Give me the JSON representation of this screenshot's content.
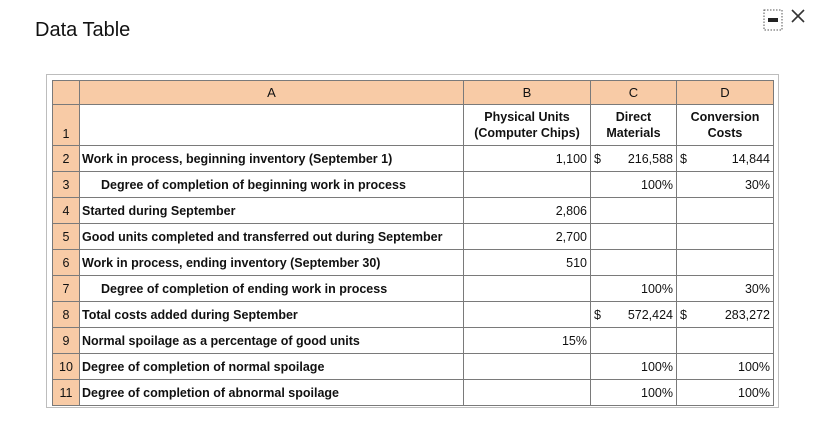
{
  "title": "Data Table",
  "table": {
    "column_letters": [
      "A",
      "B",
      "C",
      "D"
    ],
    "header_row": {
      "number": "1",
      "columns": [
        [
          "Physical Units",
          "(Computer Chips)"
        ],
        [
          "Direct",
          "Materials"
        ],
        [
          "Conversion",
          "Costs"
        ]
      ]
    },
    "rows": [
      {
        "number": "2",
        "label": "Work in process, beginning inventory (September 1)",
        "b": "1,100",
        "c_symbol": "$",
        "c": "216,588",
        "d_symbol": "$",
        "d": "14,844"
      },
      {
        "number": "3",
        "label": "Degree of completion of beginning work in process",
        "indented": true,
        "c": "100%",
        "d": "30%"
      },
      {
        "number": "4",
        "label": "Started during September",
        "b": "2,806"
      },
      {
        "number": "5",
        "label": "Good units completed and transferred out during September",
        "b": "2,700"
      },
      {
        "number": "6",
        "label": "Work in process, ending inventory (September 30)",
        "b": "510"
      },
      {
        "number": "7",
        "label": "Degree of completion of ending work in process",
        "indented": true,
        "c": "100%",
        "d": "30%"
      },
      {
        "number": "8",
        "label": "Total costs added during September",
        "c_symbol": "$",
        "c": "572,424",
        "d_symbol": "$",
        "d": "283,272"
      },
      {
        "number": "9",
        "label": "Normal spoilage as a percentage of good units",
        "b": "15%"
      },
      {
        "number": "10",
        "label": "Degree of completion of normal spoilage",
        "c": "100%",
        "d": "100%"
      },
      {
        "number": "11",
        "label": "Degree of completion of abnormal spoilage",
        "c": "100%",
        "d": "100%"
      }
    ]
  }
}
